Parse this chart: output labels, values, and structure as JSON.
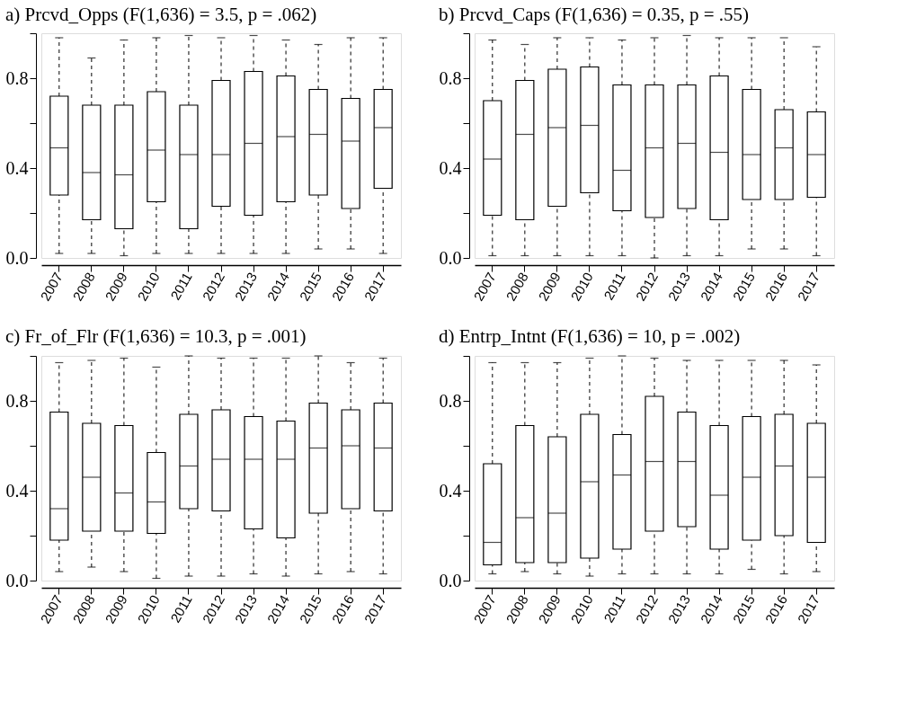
{
  "chart_data": [
    {
      "type": "box",
      "title": "a) Prcvd_Opps (F(1,636) = 3.5, p = .062)",
      "categories": [
        "2007",
        "2008",
        "2009",
        "2010",
        "2011",
        "2012",
        "2013",
        "2014",
        "2015",
        "2016",
        "2017"
      ],
      "ylim": [
        0,
        1
      ],
      "yticks": [
        {
          "value": 0,
          "label": "0.0"
        },
        {
          "value": 0.2,
          "label": null
        },
        {
          "value": 0.4,
          "label": "0.4"
        },
        {
          "value": 0.6,
          "label": null
        },
        {
          "value": 0.8,
          "label": "0.8"
        },
        {
          "value": 1,
          "label": null
        }
      ],
      "boxes": [
        {
          "low": 0.02,
          "q1": 0.28,
          "median": 0.49,
          "q3": 0.72,
          "high": 0.98
        },
        {
          "low": 0.02,
          "q1": 0.17,
          "median": 0.38,
          "q3": 0.68,
          "high": 0.89
        },
        {
          "low": 0.01,
          "q1": 0.13,
          "median": 0.37,
          "q3": 0.68,
          "high": 0.97
        },
        {
          "low": 0.02,
          "q1": 0.25,
          "median": 0.48,
          "q3": 0.74,
          "high": 0.98
        },
        {
          "low": 0.02,
          "q1": 0.13,
          "median": 0.46,
          "q3": 0.68,
          "high": 0.99
        },
        {
          "low": 0.02,
          "q1": 0.23,
          "median": 0.46,
          "q3": 0.79,
          "high": 0.98
        },
        {
          "low": 0.02,
          "q1": 0.19,
          "median": 0.51,
          "q3": 0.83,
          "high": 0.99
        },
        {
          "low": 0.02,
          "q1": 0.25,
          "median": 0.54,
          "q3": 0.81,
          "high": 0.97
        },
        {
          "low": 0.04,
          "q1": 0.28,
          "median": 0.55,
          "q3": 0.75,
          "high": 0.95
        },
        {
          "low": 0.04,
          "q1": 0.22,
          "median": 0.52,
          "q3": 0.71,
          "high": 0.98
        },
        {
          "low": 0.02,
          "q1": 0.31,
          "median": 0.58,
          "q3": 0.75,
          "high": 0.98
        }
      ]
    },
    {
      "type": "box",
      "title": "b) Prcvd_Caps (F(1,636) = 0.35, p = .55)",
      "categories": [
        "2007",
        "2008",
        "2009",
        "2010",
        "2011",
        "2012",
        "2013",
        "2014",
        "2015",
        "2016",
        "2017"
      ],
      "ylim": [
        0,
        1
      ],
      "yticks": [
        {
          "value": 0,
          "label": "0.0"
        },
        {
          "value": 0.2,
          "label": null
        },
        {
          "value": 0.4,
          "label": "0.4"
        },
        {
          "value": 0.6,
          "label": null
        },
        {
          "value": 0.8,
          "label": "0.8"
        },
        {
          "value": 1,
          "label": null
        }
      ],
      "boxes": [
        {
          "low": 0.01,
          "q1": 0.19,
          "median": 0.44,
          "q3": 0.7,
          "high": 0.97
        },
        {
          "low": 0.01,
          "q1": 0.17,
          "median": 0.55,
          "q3": 0.79,
          "high": 0.95
        },
        {
          "low": 0.01,
          "q1": 0.23,
          "median": 0.58,
          "q3": 0.84,
          "high": 0.98
        },
        {
          "low": 0.01,
          "q1": 0.29,
          "median": 0.59,
          "q3": 0.85,
          "high": 0.98
        },
        {
          "low": 0.01,
          "q1": 0.21,
          "median": 0.39,
          "q3": 0.77,
          "high": 0.97
        },
        {
          "low": 0.0,
          "q1": 0.18,
          "median": 0.49,
          "q3": 0.77,
          "high": 0.98
        },
        {
          "low": 0.01,
          "q1": 0.22,
          "median": 0.51,
          "q3": 0.77,
          "high": 0.99
        },
        {
          "low": 0.01,
          "q1": 0.17,
          "median": 0.47,
          "q3": 0.81,
          "high": 0.98
        },
        {
          "low": 0.04,
          "q1": 0.26,
          "median": 0.46,
          "q3": 0.75,
          "high": 0.98
        },
        {
          "low": 0.04,
          "q1": 0.26,
          "median": 0.49,
          "q3": 0.66,
          "high": 0.98
        },
        {
          "low": 0.01,
          "q1": 0.27,
          "median": 0.46,
          "q3": 0.65,
          "high": 0.94
        }
      ]
    },
    {
      "type": "box",
      "title": "c) Fr_of_Flr (F(1,636) = 10.3, p = .001)",
      "categories": [
        "2007",
        "2008",
        "2009",
        "2010",
        "2011",
        "2012",
        "2013",
        "2014",
        "2015",
        "2016",
        "2017"
      ],
      "ylim": [
        0,
        1
      ],
      "yticks": [
        {
          "value": 0,
          "label": "0.0"
        },
        {
          "value": 0.2,
          "label": null
        },
        {
          "value": 0.4,
          "label": "0.4"
        },
        {
          "value": 0.6,
          "label": null
        },
        {
          "value": 0.8,
          "label": "0.8"
        },
        {
          "value": 1,
          "label": null
        }
      ],
      "boxes": [
        {
          "low": 0.04,
          "q1": 0.18,
          "median": 0.32,
          "q3": 0.75,
          "high": 0.97
        },
        {
          "low": 0.06,
          "q1": 0.22,
          "median": 0.46,
          "q3": 0.7,
          "high": 0.98
        },
        {
          "low": 0.04,
          "q1": 0.22,
          "median": 0.39,
          "q3": 0.69,
          "high": 0.99
        },
        {
          "low": 0.01,
          "q1": 0.21,
          "median": 0.35,
          "q3": 0.57,
          "high": 0.95
        },
        {
          "low": 0.02,
          "q1": 0.32,
          "median": 0.51,
          "q3": 0.74,
          "high": 1.0
        },
        {
          "low": 0.02,
          "q1": 0.31,
          "median": 0.54,
          "q3": 0.76,
          "high": 0.99
        },
        {
          "low": 0.03,
          "q1": 0.23,
          "median": 0.54,
          "q3": 0.73,
          "high": 0.99
        },
        {
          "low": 0.02,
          "q1": 0.19,
          "median": 0.54,
          "q3": 0.71,
          "high": 0.99
        },
        {
          "low": 0.03,
          "q1": 0.3,
          "median": 0.59,
          "q3": 0.79,
          "high": 1.0
        },
        {
          "low": 0.04,
          "q1": 0.32,
          "median": 0.6,
          "q3": 0.76,
          "high": 0.97
        },
        {
          "low": 0.03,
          "q1": 0.31,
          "median": 0.59,
          "q3": 0.79,
          "high": 0.99
        }
      ]
    },
    {
      "type": "box",
      "title": "d) Entrp_Intnt (F(1,636) = 10, p = .002)",
      "categories": [
        "2007",
        "2008",
        "2009",
        "2010",
        "2011",
        "2012",
        "2013",
        "2014",
        "2015",
        "2016",
        "2017"
      ],
      "ylim": [
        0,
        1
      ],
      "yticks": [
        {
          "value": 0,
          "label": "0.0"
        },
        {
          "value": 0.2,
          "label": null
        },
        {
          "value": 0.4,
          "label": "0.4"
        },
        {
          "value": 0.6,
          "label": null
        },
        {
          "value": 0.8,
          "label": "0.8"
        },
        {
          "value": 1,
          "label": null
        }
      ],
      "boxes": [
        {
          "low": 0.03,
          "q1": 0.07,
          "median": 0.17,
          "q3": 0.52,
          "high": 0.97
        },
        {
          "low": 0.04,
          "q1": 0.08,
          "median": 0.28,
          "q3": 0.69,
          "high": 0.97
        },
        {
          "low": 0.03,
          "q1": 0.08,
          "median": 0.3,
          "q3": 0.64,
          "high": 0.97
        },
        {
          "low": 0.02,
          "q1": 0.1,
          "median": 0.44,
          "q3": 0.74,
          "high": 0.99
        },
        {
          "low": 0.03,
          "q1": 0.14,
          "median": 0.47,
          "q3": 0.65,
          "high": 1.0
        },
        {
          "low": 0.03,
          "q1": 0.22,
          "median": 0.53,
          "q3": 0.82,
          "high": 0.99
        },
        {
          "low": 0.03,
          "q1": 0.24,
          "median": 0.53,
          "q3": 0.75,
          "high": 0.98
        },
        {
          "low": 0.03,
          "q1": 0.14,
          "median": 0.38,
          "q3": 0.69,
          "high": 0.98
        },
        {
          "low": 0.05,
          "q1": 0.18,
          "median": 0.46,
          "q3": 0.73,
          "high": 0.98
        },
        {
          "low": 0.03,
          "q1": 0.2,
          "median": 0.51,
          "q3": 0.74,
          "high": 0.98
        },
        {
          "low": 0.04,
          "q1": 0.17,
          "median": 0.46,
          "q3": 0.7,
          "high": 0.96
        }
      ]
    }
  ]
}
